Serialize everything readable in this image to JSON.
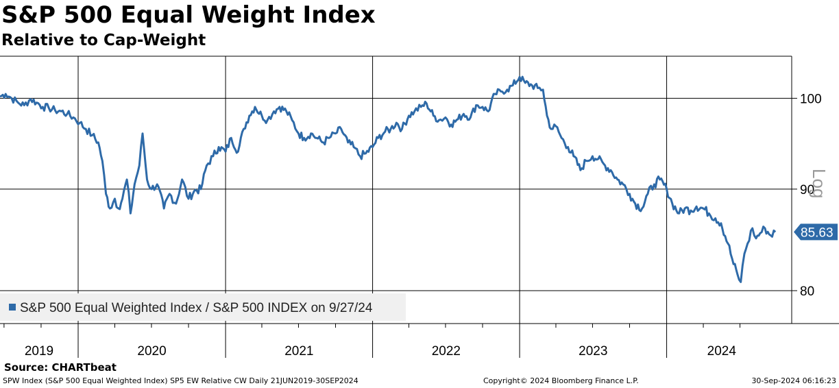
{
  "chart_data": {
    "type": "line",
    "title": "S&P 500 Equal Weight Index",
    "subtitle": "Relative to Cap-Weight",
    "scale": "log",
    "scale_label": "Log",
    "ylim": [
      77,
      105
    ],
    "yticks": [
      80,
      90,
      100
    ],
    "xlim": [
      "2019-06-21",
      "2024-09-30"
    ],
    "year_labels": [
      "2019",
      "2020",
      "2021",
      "2022",
      "2023",
      "2024"
    ],
    "grid": true,
    "legend_position": "bottom-left",
    "last_value": "85.63",
    "series": [
      {
        "name": "S&P 500 Equal Weighted Index / S&P 500 INDEX on 9/27/24",
        "color": "#2e6aa8",
        "points": [
          [
            "2019-06-21",
            100.2
          ],
          [
            "2019-07-05",
            100.5
          ],
          [
            "2019-07-20",
            100.0
          ],
          [
            "2019-08-05",
            99.5
          ],
          [
            "2019-08-20",
            99.2
          ],
          [
            "2019-09-05",
            99.9
          ],
          [
            "2019-09-20",
            99.5
          ],
          [
            "2019-10-05",
            99.0
          ],
          [
            "2019-10-20",
            98.9
          ],
          [
            "2019-11-05",
            98.6
          ],
          [
            "2019-11-20",
            98.5
          ],
          [
            "2019-12-05",
            98.2
          ],
          [
            "2019-12-20",
            97.8
          ],
          [
            "2020-01-05",
            97.2
          ],
          [
            "2020-01-20",
            96.5
          ],
          [
            "2020-02-05",
            95.8
          ],
          [
            "2020-02-20",
            95.0
          ],
          [
            "2020-03-01",
            93.0
          ],
          [
            "2020-03-10",
            89.5
          ],
          [
            "2020-03-20",
            88.0
          ],
          [
            "2020-04-01",
            89.0
          ],
          [
            "2020-04-10",
            88.0
          ],
          [
            "2020-04-20",
            89.0
          ],
          [
            "2020-05-01",
            91.0
          ],
          [
            "2020-05-10",
            87.5
          ],
          [
            "2020-05-20",
            90.5
          ],
          [
            "2020-06-01",
            92.5
          ],
          [
            "2020-06-09",
            96.0
          ],
          [
            "2020-06-20",
            91.0
          ],
          [
            "2020-07-01",
            90.0
          ],
          [
            "2020-07-15",
            90.5
          ],
          [
            "2020-08-01",
            88.0
          ],
          [
            "2020-08-15",
            89.5
          ],
          [
            "2020-08-31",
            88.5
          ],
          [
            "2020-09-15",
            91.0
          ],
          [
            "2020-10-01",
            89.0
          ],
          [
            "2020-10-15",
            89.8
          ],
          [
            "2020-11-01",
            90.0
          ],
          [
            "2020-11-15",
            92.5
          ],
          [
            "2020-12-01",
            93.5
          ],
          [
            "2020-12-15",
            94.5
          ],
          [
            "2021-01-01",
            94.0
          ],
          [
            "2021-01-15",
            95.5
          ],
          [
            "2021-02-01",
            94.0
          ],
          [
            "2021-02-15",
            96.5
          ],
          [
            "2021-03-01",
            98.0
          ],
          [
            "2021-03-15",
            99.0
          ],
          [
            "2021-04-01",
            98.0
          ],
          [
            "2021-04-15",
            97.5
          ],
          [
            "2021-05-01",
            98.5
          ],
          [
            "2021-05-15",
            99.0
          ],
          [
            "2021-06-01",
            98.5
          ],
          [
            "2021-06-15",
            97.5
          ],
          [
            "2021-07-01",
            96.0
          ],
          [
            "2021-07-15",
            95.5
          ],
          [
            "2021-08-01",
            96.0
          ],
          [
            "2021-08-15",
            95.5
          ],
          [
            "2021-09-01",
            95.0
          ],
          [
            "2021-09-15",
            95.5
          ],
          [
            "2021-10-01",
            96.0
          ],
          [
            "2021-10-15",
            96.5
          ],
          [
            "2021-11-01",
            95.0
          ],
          [
            "2021-11-15",
            94.5
          ],
          [
            "2021-12-01",
            93.5
          ],
          [
            "2021-12-15",
            93.8
          ],
          [
            "2022-01-01",
            94.5
          ],
          [
            "2022-01-15",
            95.5
          ],
          [
            "2022-02-01",
            96.2
          ],
          [
            "2022-02-15",
            96.5
          ],
          [
            "2022-03-01",
            97.2
          ],
          [
            "2022-03-15",
            96.5
          ],
          [
            "2022-04-01",
            98.0
          ],
          [
            "2022-04-15",
            98.5
          ],
          [
            "2022-05-01",
            99.0
          ],
          [
            "2022-05-15",
            99.4
          ],
          [
            "2022-06-01",
            98.0
          ],
          [
            "2022-06-15",
            97.5
          ],
          [
            "2022-07-01",
            97.8
          ],
          [
            "2022-07-15",
            97.0
          ],
          [
            "2022-08-01",
            97.6
          ],
          [
            "2022-08-15",
            98.2
          ],
          [
            "2022-09-01",
            97.8
          ],
          [
            "2022-09-15",
            99.2
          ],
          [
            "2022-10-01",
            99.0
          ],
          [
            "2022-10-15",
            98.5
          ],
          [
            "2022-11-01",
            100.5
          ],
          [
            "2022-11-15",
            100.8
          ],
          [
            "2022-12-01",
            101.0
          ],
          [
            "2022-12-15",
            101.5
          ],
          [
            "2023-01-01",
            102.5
          ],
          [
            "2023-01-15",
            101.8
          ],
          [
            "2023-02-01",
            101.5
          ],
          [
            "2023-02-15",
            101.2
          ],
          [
            "2023-02-28",
            101.0
          ],
          [
            "2023-03-10",
            98.0
          ],
          [
            "2023-03-20",
            96.5
          ],
          [
            "2023-04-01",
            96.8
          ],
          [
            "2023-04-15",
            95.5
          ],
          [
            "2023-05-01",
            94.5
          ],
          [
            "2023-05-15",
            93.5
          ],
          [
            "2023-06-01",
            92.0
          ],
          [
            "2023-06-15",
            93.0
          ],
          [
            "2023-07-01",
            93.5
          ],
          [
            "2023-07-15",
            93.2
          ],
          [
            "2023-08-01",
            92.5
          ],
          [
            "2023-08-15",
            92.0
          ],
          [
            "2023-09-01",
            91.0
          ],
          [
            "2023-09-15",
            90.5
          ],
          [
            "2023-10-01",
            89.5
          ],
          [
            "2023-10-15",
            88.5
          ],
          [
            "2023-11-01",
            88.0
          ],
          [
            "2023-11-15",
            89.5
          ],
          [
            "2023-12-01",
            90.5
          ],
          [
            "2023-12-15",
            91.0
          ],
          [
            "2024-01-01",
            90.0
          ],
          [
            "2024-01-15",
            88.5
          ],
          [
            "2024-02-01",
            87.5
          ],
          [
            "2024-02-15",
            88.0
          ],
          [
            "2024-03-01",
            87.8
          ],
          [
            "2024-03-15",
            88.2
          ],
          [
            "2024-04-01",
            88.0
          ],
          [
            "2024-04-15",
            87.5
          ],
          [
            "2024-05-01",
            87.0
          ],
          [
            "2024-05-15",
            86.5
          ],
          [
            "2024-06-01",
            84.5
          ],
          [
            "2024-06-15",
            82.5
          ],
          [
            "2024-06-25",
            81.5
          ],
          [
            "2024-07-03",
            80.8
          ],
          [
            "2024-07-12",
            83.5
          ],
          [
            "2024-07-20",
            84.5
          ],
          [
            "2024-08-01",
            86.0
          ],
          [
            "2024-08-10",
            85.0
          ],
          [
            "2024-08-20",
            85.5
          ],
          [
            "2024-09-01",
            86.0
          ],
          [
            "2024-09-15",
            85.3
          ],
          [
            "2024-09-27",
            85.63
          ]
        ]
      }
    ]
  },
  "source": "Source: CHARTbeat",
  "footer": {
    "left": "SPW Index (S&P 500 Equal Weighted Index) SP5 EW Relative CW  Daily 21JUN2019-30SEP2024",
    "center": "Copyright© 2024 Bloomberg Finance L.P.",
    "right": "30-Sep-2024 06:16:23"
  }
}
